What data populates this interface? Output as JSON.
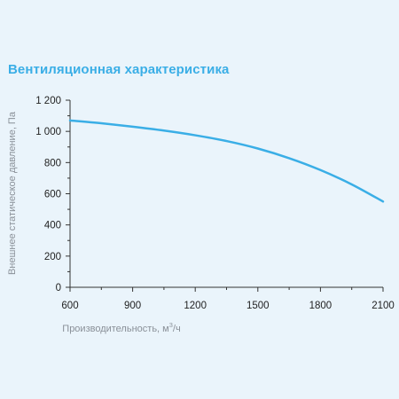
{
  "title": "Вентиляционная характеристика",
  "colors": {
    "accent": "#3aaee6",
    "background": "#eaf4fb",
    "axis": "#333333",
    "axis_label": "#8a9098"
  },
  "chart_data": {
    "type": "line",
    "title": "Вентиляционная характеристика",
    "xlabel_main": "Производительность, м",
    "xlabel_sup": "3",
    "xlabel_tail": "/ч",
    "ylabel": "Внешнее статическое давление, Па",
    "xlim": [
      600,
      2100
    ],
    "ylim": [
      0,
      1200
    ],
    "x_ticks": [
      600,
      900,
      1200,
      1500,
      1800,
      2100
    ],
    "x_tick_labels": [
      "600",
      "900",
      "1200",
      "1500",
      "1800",
      "2100"
    ],
    "y_ticks": [
      0,
      200,
      400,
      600,
      800,
      1000,
      1200
    ],
    "y_tick_labels": [
      "0",
      "200",
      "400",
      "600",
      "800",
      "1 000",
      "1 200"
    ],
    "grid": false,
    "series": [
      {
        "x": [
          600,
          750,
          900,
          1050,
          1200,
          1350,
          1500,
          1650,
          1800,
          1950,
          2100
        ],
        "y": [
          1070,
          1052,
          1030,
          1005,
          975,
          938,
          890,
          828,
          752,
          660,
          550
        ]
      }
    ]
  }
}
